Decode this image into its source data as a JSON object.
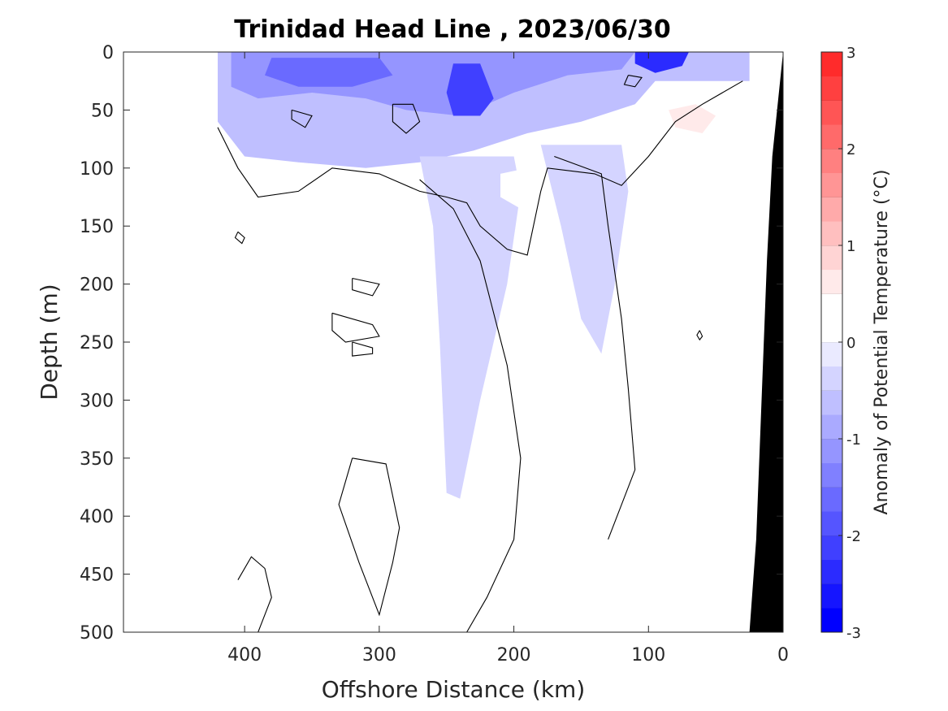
{
  "chart_data": {
    "type": "heatmap",
    "title": "Trinidad Head Line , 2023/06/30",
    "xlabel": "Offshore Distance (km)",
    "ylabel": "Depth (m)",
    "xlim": [
      490,
      0
    ],
    "ylim": [
      0,
      500
    ],
    "x_reversed": true,
    "y_reversed": true,
    "x_ticks": [
      "400",
      "300",
      "200",
      "100",
      "0"
    ],
    "x_tick_values": [
      400,
      300,
      200,
      100,
      0
    ],
    "y_ticks": [
      "0",
      "50",
      "100",
      "150",
      "200",
      "250",
      "300",
      "350",
      "400",
      "450",
      "500"
    ],
    "y_tick_values": [
      0,
      50,
      100,
      150,
      200,
      250,
      300,
      350,
      400,
      450,
      500
    ],
    "colorbar": {
      "label": "Anomaly of Potential Temperature (°C)",
      "range": [
        -3,
        3
      ],
      "ticks": [
        "3",
        "2",
        "1",
        "0",
        "-1",
        "-2",
        "-3"
      ],
      "tick_values": [
        3,
        2,
        1,
        0,
        -1,
        -2,
        -3
      ],
      "step": 0.25,
      "colors_low_to_high": [
        "#0000ff",
        "#1515ff",
        "#2b2bff",
        "#4040ff",
        "#5555ff",
        "#6a6aff",
        "#8080ff",
        "#9595ff",
        "#aaaaff",
        "#bfbfff",
        "#d4d4ff",
        "#eaeaff",
        "#ffffff",
        "#ffffff",
        "#ffeaea",
        "#ffd4d4",
        "#ffbfbf",
        "#ffaaaa",
        "#ff9595",
        "#ff8080",
        "#ff6a6a",
        "#ff5555",
        "#ff4040",
        "#ff2b2b",
        "#ff1515",
        "#ff0000"
      ]
    },
    "regions": [
      {
        "name": "surface-cold-band",
        "anomaly": -0.75,
        "points": [
          [
            420,
            0
          ],
          [
            25,
            0
          ],
          [
            25,
            25
          ],
          [
            95,
            25
          ],
          [
            110,
            45
          ],
          [
            150,
            60
          ],
          [
            190,
            70
          ],
          [
            230,
            85
          ],
          [
            270,
            95
          ],
          [
            310,
            100
          ],
          [
            360,
            95
          ],
          [
            400,
            90
          ],
          [
            420,
            60
          ]
        ]
      },
      {
        "name": "surface-cold-core",
        "anomaly": -1.25,
        "points": [
          [
            410,
            0
          ],
          [
            110,
            0
          ],
          [
            120,
            15
          ],
          [
            160,
            20
          ],
          [
            200,
            35
          ],
          [
            240,
            55
          ],
          [
            280,
            50
          ],
          [
            310,
            40
          ],
          [
            350,
            35
          ],
          [
            390,
            40
          ],
          [
            410,
            30
          ]
        ]
      },
      {
        "name": "cold-patch-west",
        "anomaly": -1.75,
        "points": [
          [
            380,
            5
          ],
          [
            300,
            5
          ],
          [
            290,
            20
          ],
          [
            320,
            30
          ],
          [
            360,
            30
          ],
          [
            385,
            20
          ]
        ]
      },
      {
        "name": "cold-core-230",
        "anomaly": -2.25,
        "points": [
          [
            245,
            10
          ],
          [
            225,
            10
          ],
          [
            215,
            40
          ],
          [
            225,
            55
          ],
          [
            245,
            55
          ],
          [
            250,
            35
          ]
        ]
      },
      {
        "name": "cold-core-90",
        "anomaly": -2.5,
        "points": [
          [
            110,
            0
          ],
          [
            70,
            0
          ],
          [
            75,
            12
          ],
          [
            95,
            18
          ],
          [
            110,
            10
          ]
        ]
      },
      {
        "name": "cold-tongue-240",
        "anomaly": -0.35,
        "points": [
          [
            270,
            90
          ],
          [
            200,
            90
          ],
          [
            195,
            120
          ],
          [
            205,
            200
          ],
          [
            225,
            300
          ],
          [
            240,
            385
          ],
          [
            250,
            380
          ],
          [
            255,
            250
          ],
          [
            260,
            150
          ]
        ]
      },
      {
        "name": "cold-tongue-130",
        "anomaly": -0.35,
        "points": [
          [
            180,
            80
          ],
          [
            120,
            80
          ],
          [
            115,
            120
          ],
          [
            125,
            200
          ],
          [
            135,
            260
          ],
          [
            150,
            230
          ],
          [
            165,
            150
          ]
        ]
      },
      {
        "name": "warm-band-offshore",
        "anomaly": 0.35,
        "points": [
          [
            395,
            170
          ],
          [
            360,
            165
          ],
          [
            345,
            200
          ],
          [
            355,
            300
          ],
          [
            355,
            420
          ],
          [
            350,
            500
          ],
          [
            385,
            500
          ],
          [
            395,
            430
          ],
          [
            380,
            330
          ],
          [
            400,
            270
          ],
          [
            390,
            200
          ]
        ]
      },
      {
        "name": "warm-band-nearshore",
        "anomaly": 0.35,
        "points": [
          [
            110,
            55
          ],
          [
            60,
            35
          ],
          [
            30,
            40
          ],
          [
            30,
            200
          ],
          [
            35,
            420
          ],
          [
            45,
            380
          ],
          [
            60,
            300
          ],
          [
            80,
            260
          ],
          [
            105,
            250
          ],
          [
            115,
            300
          ],
          [
            115,
            500
          ],
          [
            95,
            500
          ],
          [
            90,
            350
          ],
          [
            95,
            260
          ]
        ]
      },
      {
        "name": "warm-patch-60",
        "anomaly": 0.6,
        "points": [
          [
            85,
            50
          ],
          [
            65,
            45
          ],
          [
            50,
            55
          ],
          [
            60,
            70
          ],
          [
            80,
            65
          ]
        ]
      },
      {
        "name": "warm-patch-140",
        "anomaly": 0.35,
        "points": [
          [
            370,
            105
          ],
          [
            340,
            100
          ],
          [
            330,
            120
          ],
          [
            350,
            130
          ],
          [
            370,
            120
          ]
        ]
      },
      {
        "name": "warm-patch-290",
        "anomaly": 0.35,
        "points": [
          [
            300,
            110
          ],
          [
            280,
            105
          ],
          [
            275,
            160
          ],
          [
            290,
            170
          ],
          [
            300,
            140
          ]
        ]
      },
      {
        "name": "warm-patch-210",
        "anomaly": 0.35,
        "points": [
          [
            210,
            105
          ],
          [
            190,
            100
          ],
          [
            180,
            120
          ],
          [
            195,
            135
          ],
          [
            210,
            125
          ]
        ]
      }
    ],
    "zero_contours": [
      [
        [
          420,
          65
        ],
        [
          405,
          100
        ],
        [
          390,
          125
        ],
        [
          360,
          120
        ],
        [
          335,
          100
        ],
        [
          300,
          105
        ],
        [
          270,
          120
        ],
        [
          250,
          125
        ],
        [
          235,
          130
        ],
        [
          225,
          150
        ],
        [
          205,
          170
        ],
        [
          190,
          175
        ],
        [
          180,
          120
        ],
        [
          175,
          100
        ],
        [
          140,
          105
        ],
        [
          120,
          115
        ],
        [
          100,
          90
        ],
        [
          80,
          60
        ],
        [
          60,
          45
        ],
        [
          30,
          25
        ]
      ],
      [
        [
          270,
          110
        ],
        [
          245,
          135
        ],
        [
          225,
          180
        ],
        [
          205,
          270
        ],
        [
          195,
          350
        ],
        [
          200,
          420
        ],
        [
          220,
          470
        ],
        [
          235,
          500
        ]
      ],
      [
        [
          170,
          90
        ],
        [
          135,
          105
        ],
        [
          130,
          150
        ],
        [
          120,
          230
        ],
        [
          115,
          290
        ],
        [
          110,
          360
        ],
        [
          130,
          420
        ]
      ],
      [
        [
          320,
          350
        ],
        [
          295,
          355
        ],
        [
          285,
          410
        ],
        [
          290,
          440
        ],
        [
          300,
          485
        ],
        [
          315,
          440
        ],
        [
          330,
          390
        ],
        [
          320,
          350
        ]
      ],
      [
        [
          320,
          195
        ],
        [
          300,
          200
        ],
        [
          305,
          210
        ],
        [
          320,
          205
        ],
        [
          320,
          195
        ]
      ],
      [
        [
          335,
          225
        ],
        [
          305,
          235
        ],
        [
          300,
          245
        ],
        [
          325,
          250
        ],
        [
          335,
          240
        ],
        [
          335,
          225
        ]
      ],
      [
        [
          320,
          250
        ],
        [
          305,
          255
        ],
        [
          305,
          260
        ],
        [
          320,
          262
        ],
        [
          320,
          250
        ]
      ],
      [
        [
          405,
          455
        ],
        [
          395,
          435
        ],
        [
          385,
          445
        ],
        [
          380,
          470
        ],
        [
          390,
          500
        ]
      ],
      [
        [
          365,
          50
        ],
        [
          350,
          55
        ],
        [
          355,
          65
        ],
        [
          365,
          58
        ],
        [
          365,
          50
        ]
      ],
      [
        [
          290,
          45
        ],
        [
          275,
          45
        ],
        [
          270,
          60
        ],
        [
          280,
          70
        ],
        [
          290,
          60
        ],
        [
          290,
          45
        ]
      ],
      [
        [
          115,
          20
        ],
        [
          105,
          22
        ],
        [
          110,
          30
        ],
        [
          118,
          28
        ],
        [
          115,
          20
        ]
      ],
      [
        [
          62,
          240
        ],
        [
          60,
          245
        ],
        [
          62,
          248
        ],
        [
          64,
          244
        ],
        [
          62,
          240
        ]
      ],
      [
        [
          405,
          155
        ],
        [
          400,
          160
        ],
        [
          402,
          165
        ],
        [
          407,
          160
        ],
        [
          405,
          155
        ]
      ]
    ],
    "bathymetry": [
      [
        0,
        0
      ],
      [
        -10,
        0
      ],
      [
        -10,
        500
      ],
      [
        25,
        500
      ],
      [
        20,
        420
      ],
      [
        12,
        180
      ],
      [
        8,
        90
      ],
      [
        0,
        0
      ]
    ]
  }
}
